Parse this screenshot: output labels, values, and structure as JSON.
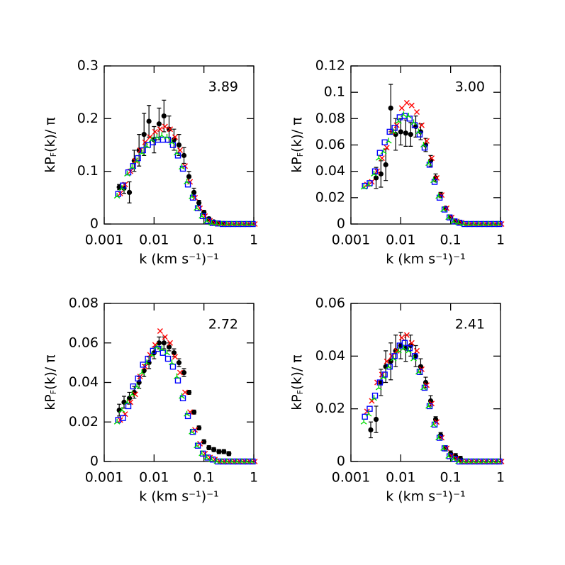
{
  "chart_data": [
    {
      "type": "scatter",
      "annotation": "3.89",
      "xlabel": "k (km s⁻¹)⁻¹",
      "ylabel": [
        "kP",
        "F",
        "(k)/ π"
      ],
      "log_x": true,
      "xlim": [
        0.001,
        1
      ],
      "xticks": [
        0.001,
        0.01,
        0.1,
        1
      ],
      "ylim": [
        0,
        0.3
      ],
      "yticks": [
        0,
        0.1,
        0.2,
        0.3
      ],
      "x": [
        0.002,
        0.0025,
        0.0032,
        0.004,
        0.005,
        0.0063,
        0.0079,
        0.01,
        0.0126,
        0.0158,
        0.02,
        0.0251,
        0.0316,
        0.0398,
        0.0501,
        0.0631,
        0.0794,
        0.1,
        0.126,
        0.158,
        0.2,
        0.251,
        0.316,
        0.398,
        0.501,
        0.631,
        0.794,
        1
      ],
      "series": [
        {
          "color": "#000000",
          "marker": "dot",
          "values": [
            0.07,
            0.068,
            0.06,
            0.12,
            0.14,
            0.17,
            0.195,
            0.16,
            0.19,
            0.205,
            0.18,
            0.16,
            0.15,
            0.13,
            0.09,
            0.06,
            0.04,
            0.022,
            0.01,
            0.004,
            0.002,
            0.001,
            null,
            null,
            null,
            null,
            null,
            null
          ],
          "errors": [
            0.005,
            0.01,
            0.02,
            0.02,
            0.03,
            0.04,
            0.03,
            0.025,
            0.03,
            0.03,
            0.025,
            0.02,
            0.02,
            0.015,
            0.01,
            0.008,
            0.005,
            0.004,
            0.003,
            0.002,
            0.001,
            0.001,
            null,
            null,
            null,
            null,
            null,
            null
          ]
        },
        {
          "color": "#ff0000",
          "marker": "cross",
          "values": [
            0.058,
            0.075,
            0.1,
            0.12,
            0.14,
            0.155,
            0.165,
            0.175,
            0.18,
            0.185,
            0.18,
            0.165,
            0.14,
            0.11,
            0.08,
            0.05,
            0.03,
            0.015,
            0.006,
            0.002,
            0.001,
            0,
            0,
            0,
            0,
            0,
            0,
            0
          ]
        },
        {
          "color": "#0000ff",
          "marker": "square",
          "values": [
            0.057,
            0.073,
            0.098,
            0.11,
            0.125,
            0.14,
            0.15,
            0.155,
            0.16,
            0.16,
            0.16,
            0.15,
            0.13,
            0.105,
            0.075,
            0.05,
            0.03,
            0.015,
            0.006,
            0.002,
            0.001,
            0,
            0,
            0,
            0,
            0,
            0,
            0
          ]
        },
        {
          "color": "#00dd00",
          "marker": "tri",
          "values": [
            0.053,
            0.068,
            0.095,
            0.108,
            0.12,
            0.135,
            0.148,
            0.16,
            0.165,
            0.168,
            0.165,
            0.155,
            0.135,
            0.108,
            0.08,
            0.052,
            0.03,
            0.015,
            0.006,
            0.002,
            0.001,
            0,
            0,
            0,
            0,
            0,
            0,
            0
          ]
        }
      ]
    },
    {
      "type": "scatter",
      "annotation": "3.00",
      "xlabel": "k (km s⁻¹)⁻¹",
      "ylabel": [
        "kP",
        "F",
        "(k)/ π"
      ],
      "log_x": true,
      "xlim": [
        0.001,
        1
      ],
      "xticks": [
        0.001,
        0.01,
        0.1,
        1
      ],
      "ylim": [
        0,
        0.12
      ],
      "yticks": [
        0,
        0.02,
        0.04,
        0.06,
        0.08,
        0.1,
        0.12
      ],
      "x": [
        0.002,
        0.0025,
        0.0032,
        0.004,
        0.005,
        0.0063,
        0.0079,
        0.01,
        0.0126,
        0.0158,
        0.02,
        0.0251,
        0.0316,
        0.0398,
        0.0501,
        0.0631,
        0.0794,
        0.1,
        0.126,
        0.158,
        0.2,
        0.251,
        0.316,
        0.398,
        0.501,
        0.631,
        0.794,
        1
      ],
      "series": [
        {
          "color": "#000000",
          "marker": "dot",
          "values": [
            null,
            null,
            0.035,
            0.038,
            0.045,
            0.088,
            0.068,
            0.07,
            0.069,
            0.068,
            0.074,
            0.07,
            0.06,
            0.048,
            0.035,
            0.022,
            0.012,
            0.005,
            0.002,
            0.001,
            null,
            null,
            null,
            null,
            null,
            null,
            null,
            null
          ],
          "errors": [
            null,
            null,
            0.008,
            0.01,
            0.012,
            0.018,
            0.012,
            0.01,
            0.01,
            0.009,
            0.008,
            0.006,
            0.005,
            0.004,
            0.003,
            0.002,
            0.001,
            0.001,
            0.001,
            0.001,
            null,
            null,
            null,
            null,
            null,
            null,
            null,
            null
          ]
        },
        {
          "color": "#ff0000",
          "marker": "cross",
          "values": [
            0.03,
            0.032,
            0.04,
            0.05,
            0.058,
            0.07,
            0.075,
            0.088,
            0.092,
            0.09,
            0.085,
            0.075,
            0.063,
            0.05,
            0.035,
            0.022,
            0.012,
            0.005,
            0.002,
            0.001,
            0,
            0,
            0,
            0,
            0,
            0,
            0,
            0
          ]
        },
        {
          "color": "#0000ff",
          "marker": "square",
          "values": [
            0.029,
            0.031,
            0.04,
            0.054,
            0.062,
            0.07,
            0.073,
            0.081,
            0.082,
            0.08,
            0.075,
            0.068,
            0.058,
            0.045,
            0.032,
            0.02,
            0.011,
            0.005,
            0.002,
            0.001,
            0,
            0,
            0,
            0,
            0,
            0,
            0,
            0
          ]
        },
        {
          "color": "#00dd00",
          "marker": "tri",
          "values": [
            0.028,
            0.03,
            0.038,
            0.05,
            0.055,
            0.063,
            0.07,
            0.078,
            0.083,
            0.082,
            0.077,
            0.07,
            0.06,
            0.046,
            0.033,
            0.021,
            0.011,
            0.005,
            0.002,
            0.001,
            0,
            0,
            0,
            0,
            0,
            0,
            0,
            0
          ]
        }
      ]
    },
    {
      "type": "scatter",
      "annotation": "2.72",
      "xlabel": "k (km s⁻¹)⁻¹",
      "ylabel": [
        "kP",
        "F",
        "(k)/ π"
      ],
      "log_x": true,
      "xlim": [
        0.001,
        1
      ],
      "xticks": [
        0.001,
        0.01,
        0.1,
        1
      ],
      "ylim": [
        0,
        0.08
      ],
      "yticks": [
        0,
        0.02,
        0.04,
        0.06,
        0.08
      ],
      "x": [
        0.002,
        0.0025,
        0.0032,
        0.004,
        0.005,
        0.0063,
        0.0079,
        0.01,
        0.0126,
        0.0158,
        0.02,
        0.0251,
        0.0316,
        0.0398,
        0.0501,
        0.0631,
        0.0794,
        0.1,
        0.126,
        0.158,
        0.2,
        0.251,
        0.316,
        0.398,
        0.501,
        0.631,
        0.794,
        1
      ],
      "series": [
        {
          "color": "#000000",
          "marker": "dot",
          "values": [
            0.026,
            0.03,
            0.032,
            0.035,
            0.04,
            0.046,
            0.05,
            0.055,
            0.06,
            0.06,
            0.058,
            0.055,
            0.05,
            0.045,
            0.035,
            0.025,
            0.017,
            0.01,
            0.007,
            0.006,
            0.005,
            0.005,
            0.004,
            null,
            null,
            null,
            null,
            null
          ],
          "errors": [
            0.003,
            0.003,
            0.003,
            0.003,
            0.003,
            0.003,
            0.003,
            0.003,
            0.003,
            0.003,
            0.002,
            0.002,
            0.002,
            0.002,
            0.001,
            0.001,
            0.001,
            0.001,
            0.001,
            0.001,
            0.001,
            0.001,
            0.001,
            null,
            null,
            null,
            null,
            null
          ]
        },
        {
          "color": "#ff0000",
          "marker": "cross",
          "values": [
            0.021,
            0.024,
            0.03,
            0.034,
            0.043,
            0.048,
            0.054,
            0.059,
            0.066,
            0.063,
            0.06,
            0.053,
            0.045,
            0.035,
            0.025,
            0.016,
            0.009,
            0.004,
            0.002,
            0.001,
            0,
            0,
            0,
            0,
            0,
            0,
            0,
            0
          ]
        },
        {
          "color": "#0000ff",
          "marker": "square",
          "values": [
            0.021,
            0.022,
            0.028,
            0.038,
            0.042,
            0.049,
            0.052,
            0.056,
            0.057,
            0.055,
            0.052,
            0.048,
            0.041,
            0.032,
            0.023,
            0.015,
            0.008,
            0.004,
            0.002,
            0.001,
            0,
            0,
            0,
            0,
            0,
            0,
            0,
            0
          ]
        },
        {
          "color": "#00dd00",
          "marker": "tri",
          "values": [
            0.02,
            0.026,
            0.03,
            0.034,
            0.038,
            0.045,
            0.05,
            0.054,
            0.058,
            0.057,
            0.055,
            0.05,
            0.043,
            0.033,
            0.024,
            0.015,
            0.008,
            0.004,
            0.002,
            0.001,
            0,
            0,
            0,
            0,
            0,
            0,
            0,
            0
          ]
        }
      ]
    },
    {
      "type": "scatter",
      "annotation": "2.41",
      "xlabel": "k (km s⁻¹)⁻¹",
      "ylabel": [
        "kP",
        "F",
        "(k)/ π"
      ],
      "log_x": true,
      "xlim": [
        0.001,
        1
      ],
      "xticks": [
        0.001,
        0.01,
        0.1,
        1
      ],
      "ylim": [
        0,
        0.06
      ],
      "yticks": [
        0,
        0.02,
        0.04,
        0.06
      ],
      "x": [
        0.002,
        0.0025,
        0.0032,
        0.004,
        0.005,
        0.0063,
        0.0079,
        0.01,
        0.0126,
        0.0158,
        0.02,
        0.0251,
        0.0316,
        0.0398,
        0.0501,
        0.0631,
        0.0794,
        0.1,
        0.126,
        0.158,
        0.2,
        0.251,
        0.316,
        0.398,
        0.501,
        0.631,
        0.794,
        1
      ],
      "series": [
        {
          "color": "#000000",
          "marker": "dot",
          "values": [
            null,
            0.012,
            0.016,
            0.03,
            0.036,
            0.038,
            0.042,
            0.044,
            0.043,
            0.044,
            0.04,
            0.036,
            0.03,
            0.023,
            0.016,
            0.01,
            0.005,
            0.003,
            0.002,
            0.001,
            null,
            null,
            null,
            null,
            null,
            null,
            null,
            null
          ],
          "errors": [
            null,
            0.003,
            0.005,
            0.005,
            0.006,
            0.007,
            0.006,
            0.005,
            0.005,
            0.004,
            0.004,
            0.003,
            0.002,
            0.002,
            0.001,
            0.001,
            0.001,
            0.001,
            0.001,
            0.001,
            null,
            null,
            null,
            null,
            null,
            null,
            null,
            null
          ]
        },
        {
          "color": "#ff0000",
          "marker": "cross",
          "values": [
            0.019,
            0.023,
            0.03,
            0.033,
            0.038,
            0.04,
            0.042,
            0.047,
            0.048,
            0.045,
            0.042,
            0.035,
            0.029,
            0.022,
            0.015,
            0.009,
            0.005,
            0.002,
            0.001,
            0,
            0,
            0,
            0,
            0,
            0,
            0,
            0,
            0
          ]
        },
        {
          "color": "#0000ff",
          "marker": "square",
          "values": [
            0.017,
            0.02,
            0.025,
            0.03,
            0.033,
            0.036,
            0.04,
            0.044,
            0.045,
            0.043,
            0.04,
            0.034,
            0.028,
            0.021,
            0.014,
            0.009,
            0.005,
            0.002,
            0.001,
            0,
            0,
            0,
            0,
            0,
            0,
            0,
            0,
            0
          ]
        },
        {
          "color": "#00dd00",
          "marker": "tri",
          "values": [
            0.015,
            0.018,
            0.024,
            0.028,
            0.032,
            0.036,
            0.039,
            0.042,
            0.043,
            0.042,
            0.039,
            0.034,
            0.028,
            0.021,
            0.014,
            0.009,
            0.005,
            0.002,
            0.001,
            0,
            0,
            0,
            0,
            0,
            0,
            0,
            0,
            0
          ]
        }
      ]
    }
  ]
}
